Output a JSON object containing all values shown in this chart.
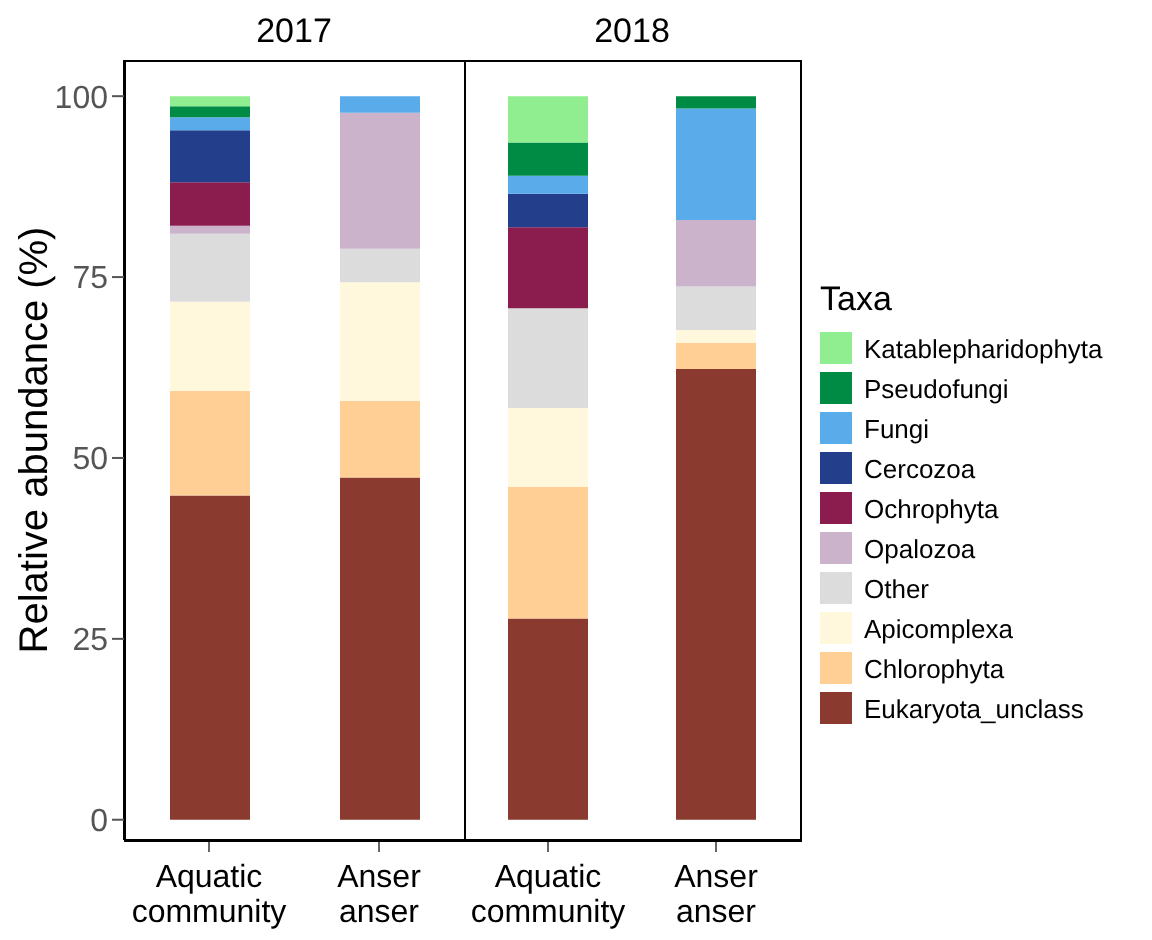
{
  "chart_data": [
    {
      "type": "bar",
      "title": "2017",
      "ylabel": "Relative abundance (%)",
      "categories": [
        "Aquatic community",
        "Anser anser"
      ],
      "stacked": true,
      "ylim": [
        -2.8,
        105
      ],
      "yticks": [
        0,
        25,
        50,
        75,
        100
      ],
      "legend": "right",
      "legend_title": "Taxa",
      "series": [
        {
          "name": "Eukaryota_unclass",
          "color": "#8b3a2f",
          "values": [
            44.8,
            47.3
          ]
        },
        {
          "name": "Chlorophyta",
          "color": "#ffcf96",
          "values": [
            14.5,
            10.6
          ]
        },
        {
          "name": "Apicomplexa",
          "color": "#fff8dc",
          "values": [
            12.3,
            16.4
          ]
        },
        {
          "name": "Other",
          "color": "#dcdcdc",
          "values": [
            9.4,
            4.6
          ]
        },
        {
          "name": "Opalozoa",
          "color": "#cbb3cc",
          "values": [
            1.1,
            18.8
          ]
        },
        {
          "name": "Ochrophyta",
          "color": "#8b1d4e",
          "values": [
            6.0,
            0
          ]
        },
        {
          "name": "Cercozoa",
          "color": "#233f8c",
          "values": [
            7.2,
            0
          ]
        },
        {
          "name": "Fungi",
          "color": "#5aabea",
          "values": [
            1.8,
            2.3
          ]
        },
        {
          "name": "Pseudofungi",
          "color": "#008b45",
          "values": [
            1.5,
            0
          ]
        },
        {
          "name": "Katablepharidophyta",
          "color": "#90ee90",
          "values": [
            1.4,
            0
          ]
        }
      ]
    },
    {
      "type": "bar",
      "title": "2018",
      "categories": [
        "Aquatic community",
        "Anser anser"
      ],
      "stacked": true,
      "ylim": [
        -2.8,
        105
      ],
      "yticks": [
        0,
        25,
        50,
        75,
        100
      ],
      "tick_labels": "x",
      "series": [
        {
          "color": "#8b3a2f",
          "values": [
            27.8,
            62.3
          ]
        },
        {
          "color": "#ffcf96",
          "values": [
            18.2,
            3.6
          ]
        },
        {
          "color": "#fff8dc",
          "values": [
            10.9,
            1.8
          ]
        },
        {
          "color": "#dcdcdc",
          "values": [
            13.8,
            6.0
          ]
        },
        {
          "color": "#cbb3cc",
          "values": [
            0,
            9.2
          ]
        },
        {
          "color": "#8b1d4e",
          "values": [
            11.2,
            0
          ]
        },
        {
          "color": "#233f8c",
          "values": [
            4.6,
            0
          ]
        },
        {
          "color": "#5aabea",
          "values": [
            2.5,
            15.4
          ]
        },
        {
          "color": "#008b45",
          "values": [
            4.6,
            1.7
          ]
        },
        {
          "color": "#90ee90",
          "values": [
            6.4,
            0
          ]
        }
      ]
    }
  ]
}
